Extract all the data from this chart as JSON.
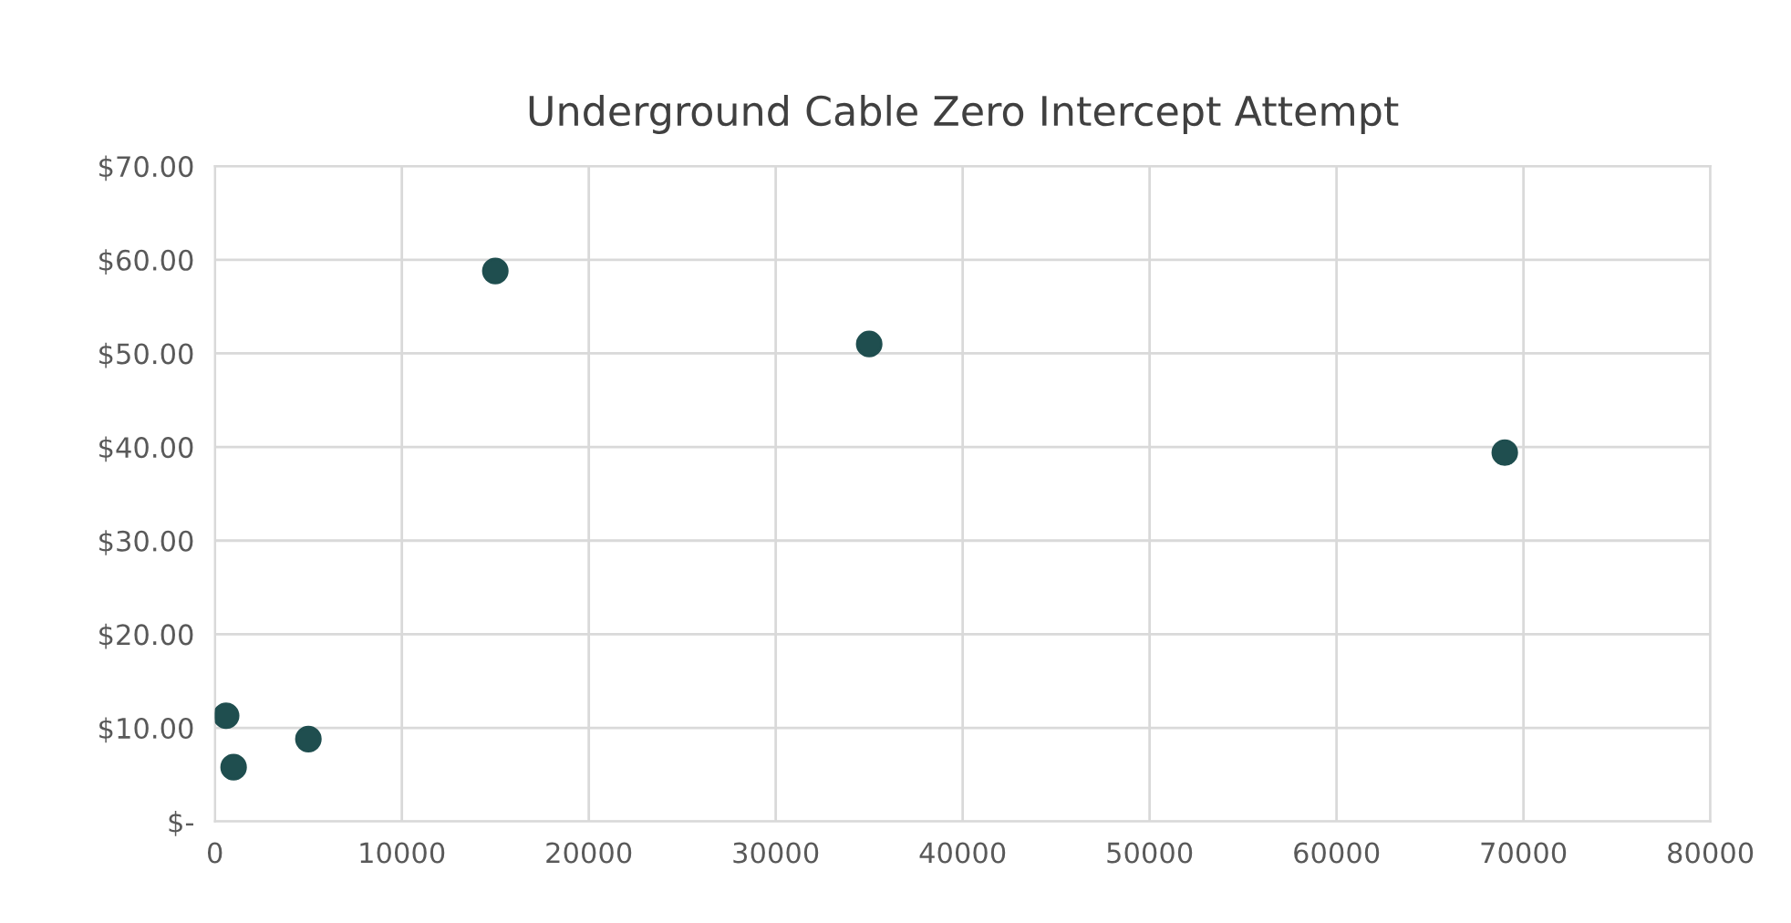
{
  "chart_data": {
    "type": "scatter",
    "title": "Underground Cable Zero Intercept Attempt",
    "x": [
      600,
      1000,
      5000,
      15000,
      35000,
      69000
    ],
    "values": [
      11.3,
      5.8,
      8.8,
      58.8,
      51.0,
      39.4
    ],
    "color": "#1f4e4f",
    "marker": "circle",
    "xlim": [
      0,
      80000
    ],
    "xticks": [
      0,
      10000,
      20000,
      30000,
      40000,
      50000,
      60000,
      70000,
      80000
    ],
    "ylim": [
      0,
      70
    ],
    "yticks": [
      {
        "value": 0,
        "label": "$-"
      },
      {
        "value": 10,
        "label": "$10.00"
      },
      {
        "value": 20,
        "label": "$20.00"
      },
      {
        "value": 30,
        "label": "$30.00"
      },
      {
        "value": 40,
        "label": "$40.00"
      },
      {
        "value": 50,
        "label": "$50.00"
      },
      {
        "value": 60,
        "label": "$60.00"
      },
      {
        "value": 70,
        "label": "$70.00"
      }
    ],
    "grid": true
  }
}
